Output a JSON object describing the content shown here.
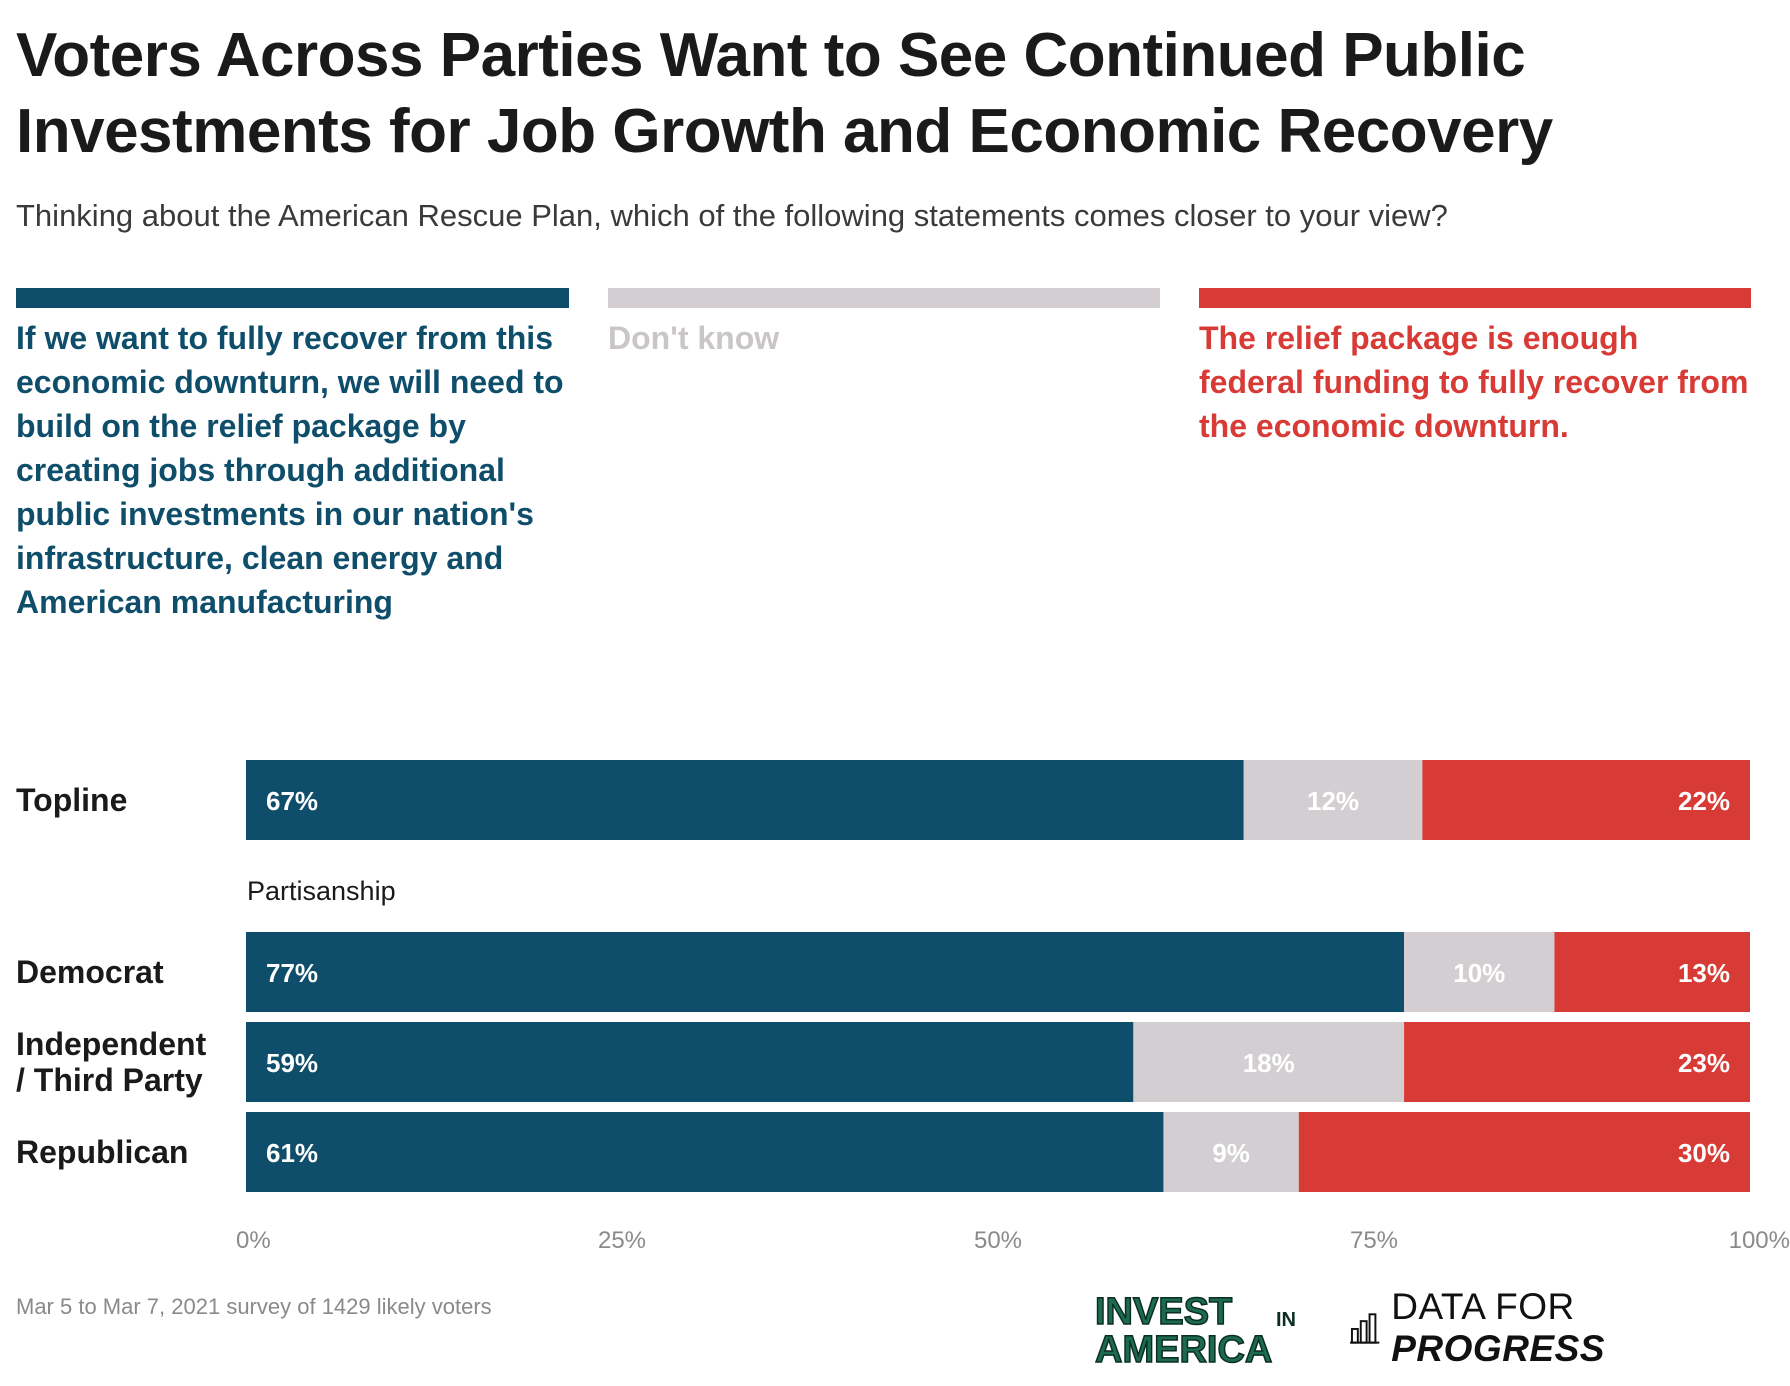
{
  "title": "Voters Across Parties Want to See Continued Public Investments for Job Growth and Economic Recovery",
  "subtitle": "Thinking about the American Rescue Plan, which of the following statements comes closer to your view?",
  "colors": {
    "build": "#0e4e6b",
    "dont_know": "#d2ced2",
    "enough": "#d83a35",
    "text": "#1a1a1a",
    "axis": "#8a8a8a"
  },
  "legend": [
    {
      "label": "If we want to fully recover from this economic downturn, we will need to build on the relief package by creating jobs through additional public investments in our nation's infrastructure, clean energy and American manufacturing",
      "color": "#0e4e6b"
    },
    {
      "label": "Don't know",
      "color": "#d2ced2"
    },
    {
      "label": "The relief package is enough federal funding to fully recover from the economic downturn.",
      "color": "#d83a35"
    }
  ],
  "chart_data": {
    "type": "bar",
    "orientation": "horizontal",
    "stacked": true,
    "title": "Voters Across Parties Want to See Continued Public Investments for Job Growth and Economic Recovery",
    "categories": [
      "Topline",
      "Democrat",
      "Independent / Third Party",
      "Republican"
    ],
    "category_lines": [
      [
        "Topline"
      ],
      [
        "Democrat"
      ],
      [
        "Independent",
        "/ Third Party"
      ],
      [
        "Republican"
      ]
    ],
    "group_label": "Partisanship",
    "series": [
      {
        "name": "If we want to fully recover from this economic downturn, we will need to build on the relief package by creating jobs through additional public investments in our nation's infrastructure, clean energy and American manufacturing",
        "values": [
          67,
          77,
          59,
          61
        ],
        "labels": [
          "67%",
          "77%",
          "59%",
          "61%"
        ],
        "color": "#0e4e6b"
      },
      {
        "name": "Don't know",
        "values": [
          12,
          10,
          18,
          9
        ],
        "labels": [
          "12%",
          "10%",
          "18%",
          "9%"
        ],
        "color": "#d2ced2"
      },
      {
        "name": "The relief package is enough federal funding to fully recover from the economic downturn.",
        "values": [
          22,
          13,
          23,
          30
        ],
        "labels": [
          "22%",
          "13%",
          "23%",
          "30%"
        ],
        "color": "#d83a35"
      }
    ],
    "xlim": [
      0,
      100
    ],
    "xticks": [
      0,
      25,
      50,
      75,
      100
    ],
    "xtick_labels": [
      "0%",
      "25%",
      "50%",
      "75%",
      "100%"
    ],
    "xlabel": "",
    "ylabel": "",
    "grid": false
  },
  "footer": {
    "note": "Mar 5 to Mar 7, 2021 survey of 1429 likely voters",
    "logo_invest_line1": "INVEST",
    "logo_invest_in": "IN",
    "logo_invest_line2": "AMERICA",
    "logo_dfp_plain": "DATA FOR ",
    "logo_dfp_bold": "PROGRESS"
  }
}
